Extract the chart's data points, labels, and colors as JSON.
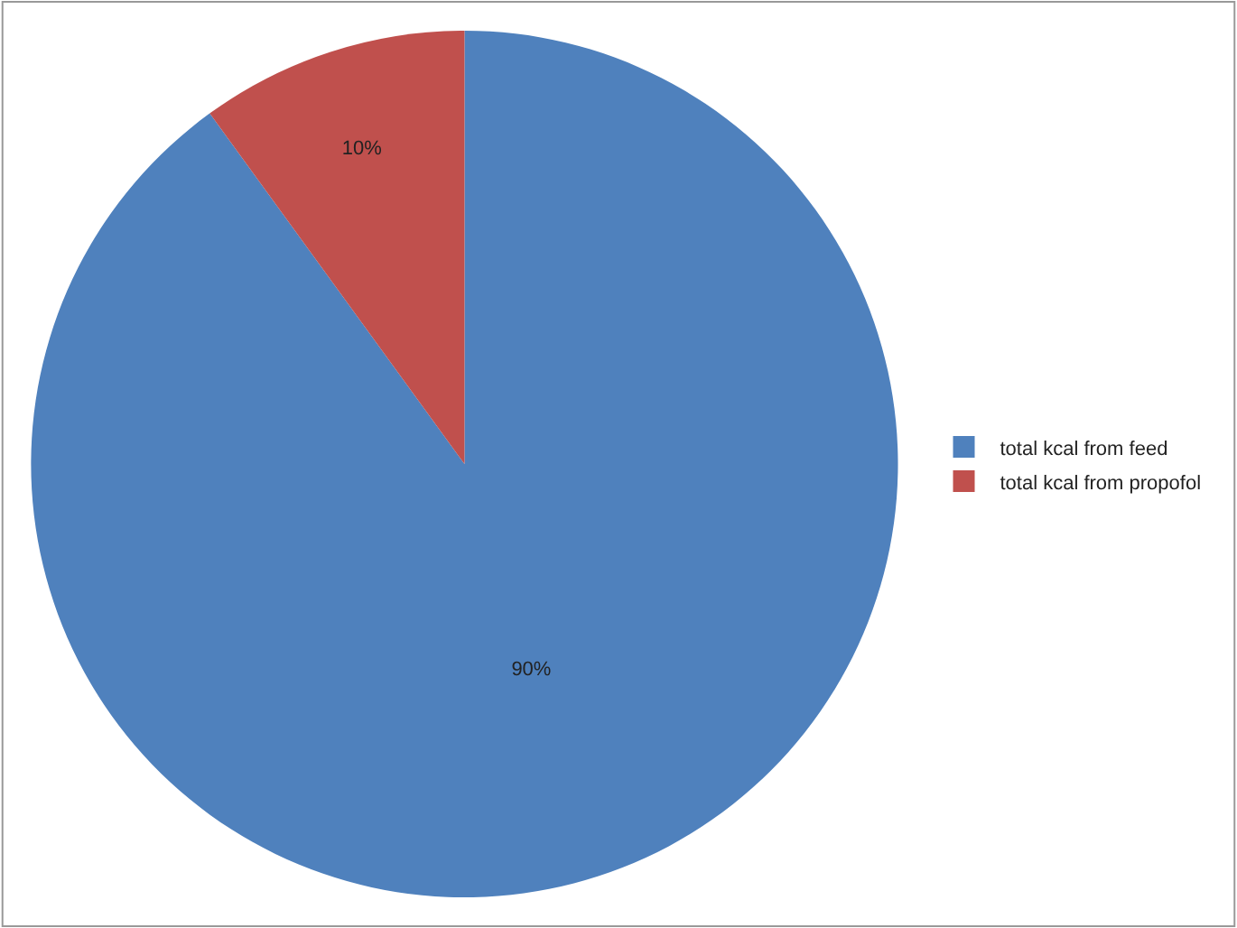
{
  "chart_data": {
    "type": "pie",
    "categories": [
      "total kcal from feed",
      "total kcal from propofol"
    ],
    "values": [
      90,
      10
    ],
    "colors": [
      "#4f81bd",
      "#c0504d"
    ],
    "value_labels": [
      "90%",
      "10%"
    ],
    "legend": "right"
  }
}
